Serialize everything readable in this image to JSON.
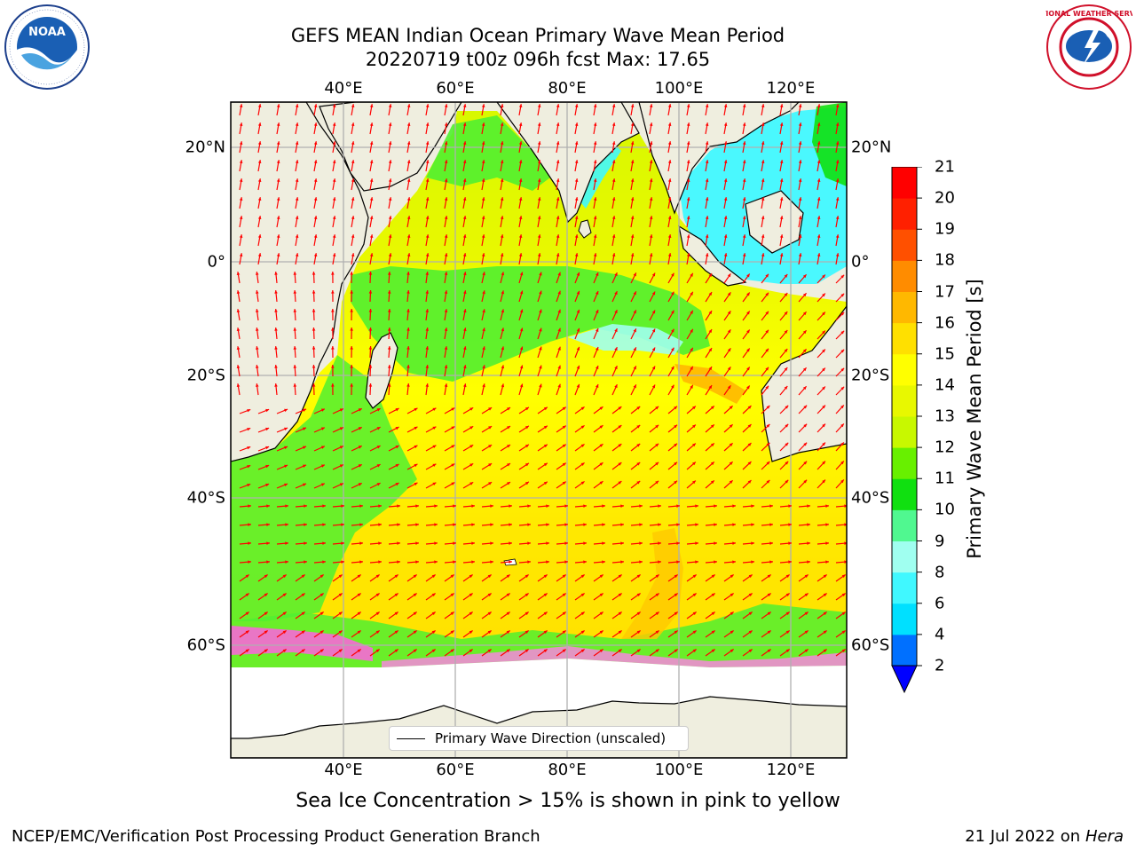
{
  "header": {
    "title_line1": "GEFS MEAN Indian Ocean Primary Wave Mean Period",
    "title_line2": "20220719 t00z 096h fcst   Max: 17.65"
  },
  "logos": {
    "left": {
      "text": "NOAA",
      "ring_text": "NATIONAL OCEANIC AND ATMOSPHERIC ADMINISTRATION · U.S. DEPARTMENT OF COMMERCE"
    },
    "right": {
      "ring_text": "NATIONAL WEATHER SERVICE"
    }
  },
  "map": {
    "lon_ticks_top": [
      "40°E",
      "60°E",
      "80°E",
      "100°E",
      "120°E"
    ],
    "lon_ticks_bottom": [
      "40°E",
      "60°E",
      "80°E",
      "100°E",
      "120°E"
    ],
    "lat_ticks_left": [
      "20°N",
      "0°",
      "20°S",
      "40°S",
      "60°S"
    ],
    "lat_ticks_right": [
      "20°N",
      "0°",
      "20°S",
      "40°S",
      "60°S"
    ],
    "lon_values": [
      40,
      60,
      80,
      100,
      120
    ],
    "lat_values": [
      20,
      0,
      -20,
      -40,
      -60
    ],
    "legend_label": "Primary Wave Direction (unscaled)",
    "colors": {
      "land": "#efeedf",
      "ice_free_below": "#ffffff",
      "arrow": "#ff0000",
      "grid": "#b0b0b0"
    }
  },
  "colorbar": {
    "label": "Primary Wave Mean Period [s]",
    "levels": [
      "2",
      "4",
      "6",
      "8",
      "9",
      "10",
      "11",
      "12",
      "13",
      "14",
      "15",
      "16",
      "17",
      "18",
      "19",
      "20",
      "21"
    ],
    "colors": [
      "#0000f0",
      "#0070ff",
      "#00e0ff",
      "#40f8ff",
      "#a0fff0",
      "#50f890",
      "#10e010",
      "#68f000",
      "#c8f800",
      "#e8f800",
      "#ffff00",
      "#ffe000",
      "#ffb800",
      "#ff8c00",
      "#ff5000",
      "#ff2000",
      "#ff0000"
    ],
    "extend_color": "#0000ff"
  },
  "notes": {
    "sea_ice": "Sea Ice Concentration > 15% is shown in pink to yellow"
  },
  "footer": {
    "left": "NCEP/EMC/Verification Post Processing Product Generation Branch",
    "date": "21 Jul 2022 on",
    "machine": "Hera"
  }
}
